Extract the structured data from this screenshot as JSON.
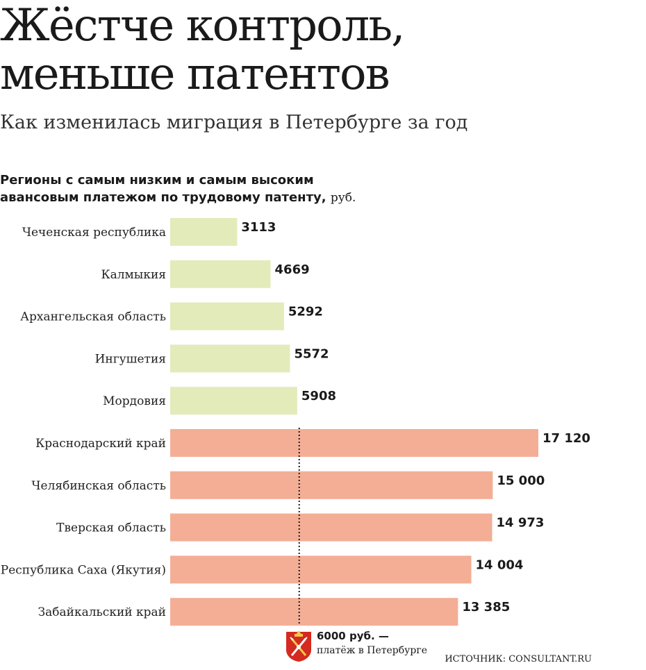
{
  "header": {
    "title_line1": "Жёстче контроль,",
    "title_line2": "меньше патентов",
    "subtitle": "Как изменилась миграция в Петербурге за год"
  },
  "chart_heading": {
    "bold_line1": "Регионы с самым низким и самым высоким",
    "bold_line2": "авансовым платежом по трудовому патенту,",
    "unit": "руб."
  },
  "chart_data": {
    "type": "bar",
    "orientation": "horizontal",
    "title": "Регионы с самым низким и самым высоким авансовым платежом по трудовому патенту",
    "unit": "руб.",
    "categories": [
      "Чеченская республика",
      "Калмыкия",
      "Архангельская область",
      "Ингушетия",
      "Мордовия",
      "Краснодарский край",
      "Челябинская область",
      "Тверская область",
      "Республика Саха (Якутия)",
      "Забайкальский край"
    ],
    "values": [
      3113,
      4669,
      5292,
      5572,
      5908,
      17120,
      15000,
      14973,
      14004,
      13385
    ],
    "value_labels": [
      "3113",
      "4669",
      "5292",
      "5572",
      "5908",
      "17 120",
      "15 000",
      "14 973",
      "14 004",
      "13 385"
    ],
    "groups": [
      "low",
      "low",
      "low",
      "low",
      "low",
      "high",
      "high",
      "high",
      "high",
      "high"
    ],
    "group_colors": {
      "low": "#e3ebbb",
      "high": "#f4ae96"
    },
    "reference_line": {
      "value": 6000
    },
    "xlim": [
      0,
      17120
    ],
    "grid": false,
    "legend": "none"
  },
  "reference_note": {
    "value_text": "6000 руб. —",
    "description": "платёж в Петербурге",
    "icon": "spb-coat-of-arms-icon"
  },
  "source": "ИСТОЧНИК: CONSULTANT.RU"
}
